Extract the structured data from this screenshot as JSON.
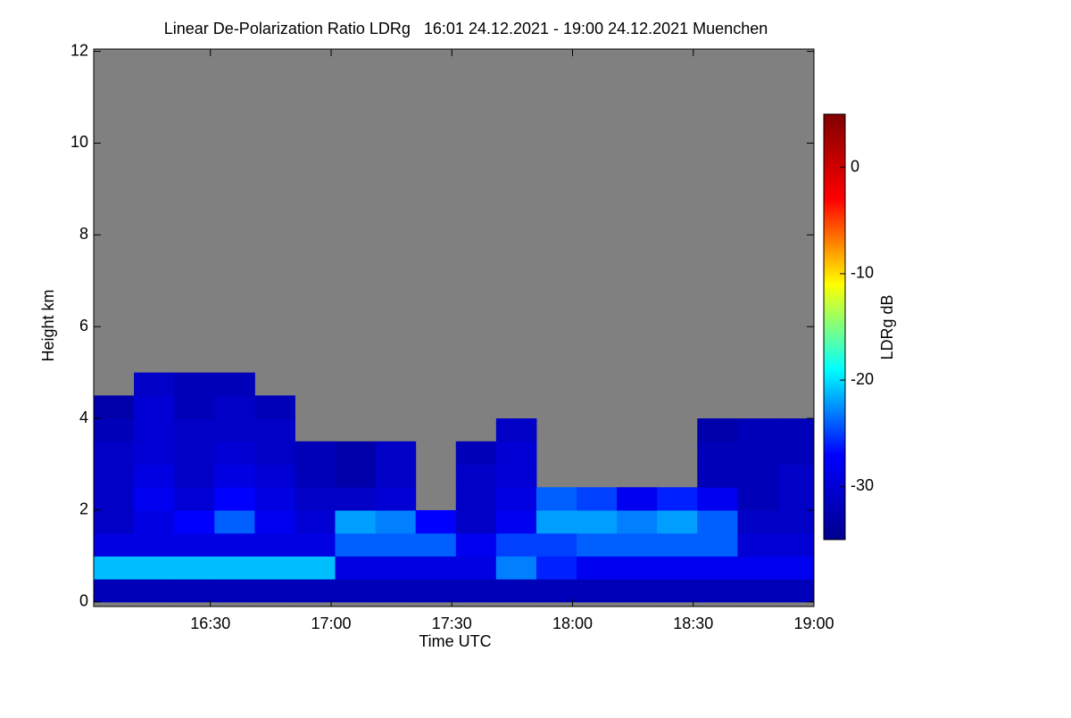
{
  "chart_data": {
    "type": "heatmap",
    "title": "Linear De-Polarization Ratio LDRg   16:01 24.12.2021 - 19:00 24.12.2021 Muenchen",
    "x_label": "Time UTC",
    "y_label": "Height km",
    "colorbar_label": "LDRg dB",
    "xlim": [
      "16:01",
      "19:00"
    ],
    "xticks": [
      "16:30",
      "17:00",
      "17:30",
      "18:00",
      "18:30",
      "19:00"
    ],
    "ylim": [
      -0.1,
      12.05
    ],
    "yticks": [
      0,
      2,
      4,
      6,
      8,
      10,
      12
    ],
    "clim": [
      -35,
      5
    ],
    "cticks": [
      0,
      -10,
      -20,
      -30
    ],
    "colormap": [
      "#00008f",
      "#0000ff",
      "#00ffff",
      "#ffff00",
      "#ff0000",
      "#800000"
    ],
    "nodata_color": "#808080",
    "x": [
      "16:06",
      "16:16",
      "16:26",
      "16:36",
      "16:46",
      "16:56",
      "17:06",
      "17:16",
      "17:26",
      "17:36",
      "17:46",
      "17:56",
      "18:06",
      "18:16",
      "18:26",
      "18:36",
      "18:46",
      "18:56"
    ],
    "y": [
      0.25,
      0.75,
      1.25,
      1.75,
      2.25,
      2.75,
      3.25,
      3.75,
      4.25,
      4.75
    ],
    "z": [
      [
        -32,
        -32,
        -32,
        -32,
        -32,
        -32,
        -32,
        -32,
        -32,
        -32,
        -32,
        -32,
        -32,
        -32,
        -32,
        -32,
        -32,
        -32
      ],
      [
        -21,
        -21,
        -21,
        -21,
        -21,
        -21,
        -29,
        -29,
        -29,
        -29,
        -23,
        -26,
        -28,
        -28,
        -28,
        -28,
        -28,
        -28
      ],
      [
        -29,
        -29,
        -29,
        -29,
        -29,
        -29,
        -24,
        -24,
        -24,
        -28,
        -25,
        -25,
        -24,
        -24,
        -24,
        -24,
        -30,
        -30
      ],
      [
        -31,
        -29,
        -27,
        -24,
        -28,
        -30,
        -22,
        -23,
        -27,
        -31,
        -28,
        -22,
        -22,
        -23,
        -22,
        -24,
        -31,
        -31
      ],
      [
        -31,
        -28,
        -30,
        -27,
        -29,
        -31,
        -31,
        -30,
        null,
        -31,
        -29,
        -24,
        -25,
        -28,
        -26,
        -28,
        -32,
        -31
      ],
      [
        -31,
        -29,
        -31,
        -29,
        -30,
        -32,
        -33,
        -31,
        null,
        -31,
        -30,
        null,
        null,
        null,
        null,
        -32,
        -32,
        -31
      ],
      [
        -31,
        -30,
        -31,
        -30,
        -31,
        -32,
        -33,
        -31,
        null,
        -32,
        -30,
        null,
        null,
        null,
        null,
        -32,
        -32,
        -32
      ],
      [
        -32,
        -30,
        -31,
        -31,
        -31,
        null,
        null,
        null,
        null,
        null,
        -31,
        null,
        null,
        null,
        null,
        -33,
        -32,
        -32
      ],
      [
        -33,
        -30,
        -32,
        -31,
        -32,
        null,
        null,
        null,
        null,
        null,
        null,
        null,
        null,
        null,
        null,
        null,
        null,
        null
      ],
      [
        null,
        -31,
        -32,
        -32,
        null,
        null,
        null,
        null,
        null,
        null,
        null,
        null,
        null,
        null,
        null,
        null,
        null,
        null
      ]
    ]
  }
}
